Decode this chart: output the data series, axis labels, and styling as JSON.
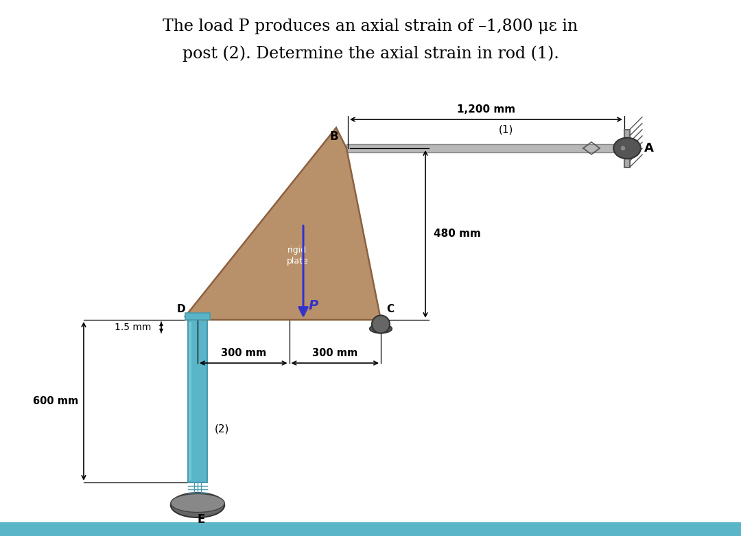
{
  "bg_color": "#ffffff",
  "plate_color": "#b8916a",
  "plate_edge_color": "#8a6040",
  "post_color_light": "#7ecfde",
  "post_color_dark": "#4a9aad",
  "post_color_mid": "#5ab5c8",
  "rod_color": "#b8b8b8",
  "rod_edge": "#888888",
  "pin_color": "#666666",
  "base_color": "#555555",
  "arrow_color": "#3333cc",
  "dim_color": "#000000",
  "bottom_bar_color": "#5ab5c8",
  "title1": "The load ",
  "title1_italic": "P",
  "title1_rest": " produces an axial strain of –1,800 με in",
  "title2": "post (2). Determine the axial strain in rod (1).",
  "label_B": "B",
  "label_D": "D",
  "label_C": "C",
  "label_A": "A",
  "label_E": "E",
  "label_1": "(1)",
  "label_2": "(2)",
  "label_rigid": "rigid\nplate",
  "label_P": "P",
  "dim_1200": "1,200 mm",
  "dim_480": "480 mm",
  "dim_300a": "300 mm",
  "dim_300b": "300 mm",
  "dim_600": "600 mm",
  "dim_15": "1.5 mm"
}
